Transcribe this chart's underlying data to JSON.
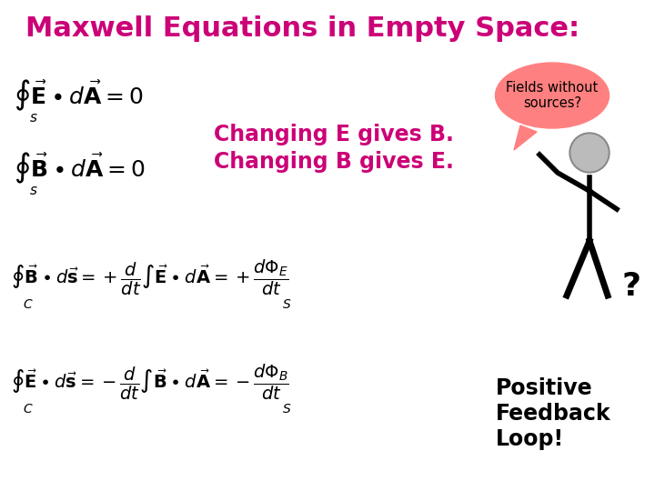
{
  "title": "Maxwell Equations in Empty Space:",
  "title_color": "#CC0077",
  "title_fontsize": 22,
  "bg_color": "#FFFFFF",
  "changing_text1": "Changing E gives B.",
  "changing_text2": "Changing B gives E.",
  "changing_color": "#CC0077",
  "changing_fontsize": 17,
  "bubble_text": "Fields without\nsources?",
  "bubble_color": "#FF8080",
  "positive_feedback": "Positive\nFeedback\nLoop!",
  "eq_color": "#000000",
  "eq1_fontsize": 18,
  "eq3_fontsize": 14,
  "pf_fontsize": 17
}
